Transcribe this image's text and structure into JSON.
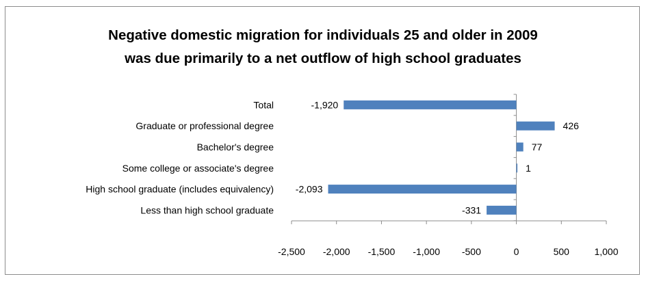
{
  "chart_data": {
    "type": "bar",
    "orientation": "horizontal",
    "title": [
      "Negative domestic migration for individuals 25 and older in 2009",
      "was due primarily to a net outflow of high school graduates"
    ],
    "categories": [
      "Total",
      "Graduate or professional degree",
      "Bachelor's degree",
      "Some college or associate's degree",
      "High school graduate (includes equivalency)",
      "Less than high school graduate"
    ],
    "values": [
      -1920,
      426,
      77,
      1,
      -2093,
      -331
    ],
    "data_labels": [
      "-1,920",
      "426",
      "77",
      "1",
      "-2,093",
      "-331"
    ],
    "xlim": [
      -2500,
      1000
    ],
    "x_ticks": [
      -2500,
      -2000,
      -1500,
      -1000,
      -500,
      0,
      500,
      1000
    ],
    "x_tick_labels": [
      "-2,500",
      "-2,000",
      "-1,500",
      "-1,000",
      "-500",
      "0",
      "500",
      "1,000"
    ],
    "xlabel": "",
    "ylabel": "",
    "grid": false,
    "legend": "none",
    "bar_color": "#4f81bd"
  }
}
